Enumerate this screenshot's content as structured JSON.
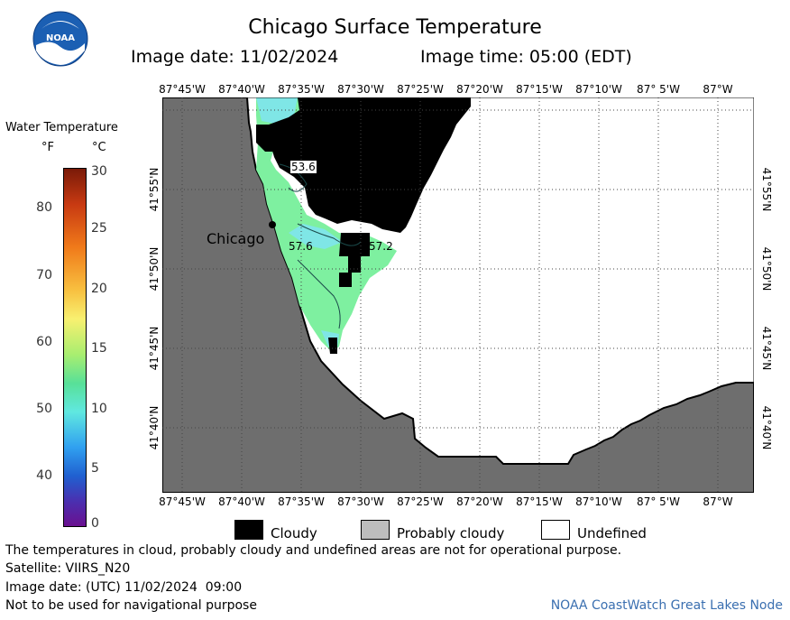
{
  "header": {
    "title": "Chicago Surface Temperature",
    "image_date_label": "Image date: 11/02/2024",
    "image_time_label": "Image time: 05:00 (EDT)",
    "logo_text": "NOAA"
  },
  "map": {
    "lon_labels": [
      "87°45'W",
      "87°40'W",
      "87°35'W",
      "87°30'W",
      "87°25'W",
      "87°20'W",
      "87°15'W",
      "87°10'W",
      "87° 5'W",
      "87°W"
    ],
    "lat_labels": [
      "41°55'N",
      "41°50'N",
      "41°45'N",
      "41°40'N"
    ],
    "city_label": "Chicago",
    "contour_labels": [
      "53.6",
      "57.6",
      "57.2"
    ],
    "colors": {
      "land": "#6e6e6e",
      "cloudy": "#000000",
      "undefined": "#ffffff",
      "water_warm": "#7ef0a0",
      "water_cool": "#7fe6e6"
    }
  },
  "scale": {
    "title": "Water Temperature",
    "unit_f": "°F",
    "unit_c": "°C",
    "f_ticks": [
      "80",
      "70",
      "60",
      "50",
      "40"
    ],
    "c_ticks": [
      "30",
      "25",
      "20",
      "15",
      "10",
      "5",
      "0"
    ]
  },
  "legend": {
    "cloudy": "Cloudy",
    "probably_cloudy": "Probably cloudy",
    "undefined": "Undefined"
  },
  "footer": {
    "line1": "The temperatures in cloud, probably cloudy and undefined areas are not for operational purpose.",
    "line2": "Satellite: VIIRS_N20",
    "line3": "Image date: (UTC) 11/02/2024  09:00",
    "line4": "Not to be used for navigational purpose",
    "node": "NOAA CoastWatch Great Lakes Node"
  }
}
